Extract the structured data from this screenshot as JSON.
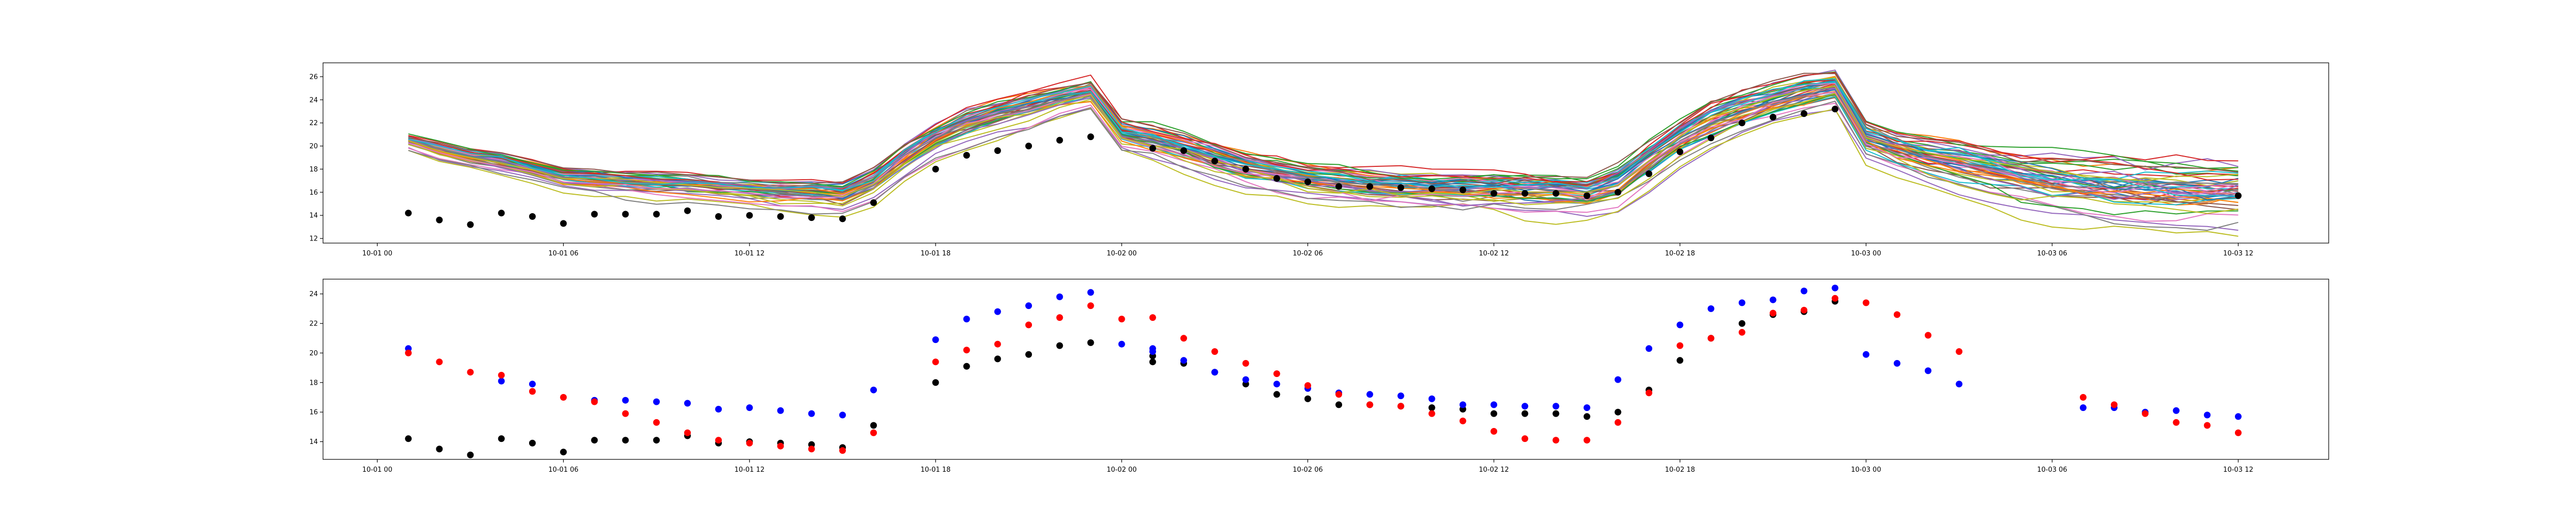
{
  "chart_data": [
    {
      "type": "line",
      "x_type": "datetime",
      "x_ticks": [
        {
          "value": "2021-10-01 00:00",
          "label": "10-01 00"
        },
        {
          "value": "2021-10-01 06:00",
          "label": "10-01 06"
        },
        {
          "value": "2021-10-01 12:00",
          "label": "10-01 12"
        },
        {
          "value": "2021-10-01 18:00",
          "label": "10-01 18"
        },
        {
          "value": "2021-10-02 00:00",
          "label": "10-02 00"
        },
        {
          "value": "2021-10-02 06:00",
          "label": "10-02 06"
        },
        {
          "value": "2021-10-02 12:00",
          "label": "10-02 12"
        },
        {
          "value": "2021-10-02 18:00",
          "label": "10-02 18"
        },
        {
          "value": "2021-10-03 00:00",
          "label": "10-03 00"
        },
        {
          "value": "2021-10-03 06:00",
          "label": "10-03 06"
        },
        {
          "value": "2021-10-03 12:00",
          "label": "10-03 12"
        }
      ],
      "y_ticks": [
        12,
        14,
        16,
        18,
        20,
        22,
        24,
        26
      ],
      "xlim": [
        "2021-09-30 22:15",
        "2021-10-03 14:55"
      ],
      "ylim": [
        11.6,
        27.2
      ],
      "grid": false,
      "ensemble": {
        "member_count": 50,
        "palette": [
          "#1f77b4",
          "#ff7f0e",
          "#2ca02c",
          "#d62728",
          "#9467bd",
          "#8c564b",
          "#e377c2",
          "#7f7f7f",
          "#bcbd22",
          "#17becf"
        ],
        "x": [
          "2021-10-01 01:00",
          "2021-10-01 02:00",
          "2021-10-01 03:00",
          "2021-10-01 04:00",
          "2021-10-01 05:00",
          "2021-10-01 06:00",
          "2021-10-01 07:00",
          "2021-10-01 08:00",
          "2021-10-01 09:00",
          "2021-10-01 10:00",
          "2021-10-01 11:00",
          "2021-10-01 12:00",
          "2021-10-01 13:00",
          "2021-10-01 14:00",
          "2021-10-01 15:00",
          "2021-10-01 16:00",
          "2021-10-01 17:00",
          "2021-10-01 18:00",
          "2021-10-01 19:00",
          "2021-10-01 20:00",
          "2021-10-01 21:00",
          "2021-10-01 22:00",
          "2021-10-01 23:00",
          "2021-10-02 00:00",
          "2021-10-02 01:00",
          "2021-10-02 02:00",
          "2021-10-02 03:00",
          "2021-10-02 04:00",
          "2021-10-02 05:00",
          "2021-10-02 06:00",
          "2021-10-02 07:00",
          "2021-10-02 08:00",
          "2021-10-02 09:00",
          "2021-10-02 10:00",
          "2021-10-02 11:00",
          "2021-10-02 12:00",
          "2021-10-02 13:00",
          "2021-10-02 14:00",
          "2021-10-02 15:00",
          "2021-10-02 16:00",
          "2021-10-02 17:00",
          "2021-10-02 18:00",
          "2021-10-02 19:00",
          "2021-10-02 20:00",
          "2021-10-02 21:00",
          "2021-10-02 22:00",
          "2021-10-02 23:00",
          "2021-10-03 00:00",
          "2021-10-03 01:00",
          "2021-10-03 02:00",
          "2021-10-03 03:00",
          "2021-10-03 04:00",
          "2021-10-03 05:00",
          "2021-10-03 06:00",
          "2021-10-03 07:00",
          "2021-10-03 08:00",
          "2021-10-03 09:00",
          "2021-10-03 10:00",
          "2021-10-03 11:00",
          "2021-10-03 12:00"
        ],
        "central": [
          20.4,
          19.6,
          19.0,
          18.6,
          18.0,
          17.3,
          17.1,
          16.9,
          16.7,
          16.6,
          16.4,
          16.2,
          16.0,
          15.9,
          15.7,
          16.8,
          18.9,
          20.6,
          21.8,
          22.6,
          23.3,
          24.0,
          24.6,
          21.0,
          20.4,
          19.6,
          18.8,
          18.1,
          17.6,
          17.1,
          16.9,
          16.6,
          16.4,
          16.3,
          16.2,
          16.2,
          16.1,
          16.0,
          15.8,
          16.6,
          18.6,
          20.5,
          22.0,
          23.0,
          23.8,
          24.5,
          25.0,
          20.6,
          19.7,
          19.0,
          18.4,
          17.7,
          17.1,
          16.7,
          16.5,
          16.3,
          16.2,
          16.1,
          16.0,
          16.0
        ],
        "spread": [
          0.5,
          0.6,
          0.6,
          0.7,
          0.7,
          0.8,
          0.8,
          0.8,
          0.9,
          0.9,
          0.9,
          0.9,
          1.0,
          1.0,
          1.0,
          1.1,
          1.1,
          1.1,
          1.1,
          1.1,
          1.1,
          1.0,
          1.0,
          1.0,
          1.1,
          1.1,
          1.2,
          1.2,
          1.2,
          1.2,
          1.3,
          1.3,
          1.3,
          1.3,
          1.3,
          1.3,
          1.3,
          1.3,
          1.3,
          1.5,
          1.6,
          1.6,
          1.6,
          1.5,
          1.4,
          1.4,
          1.3,
          1.4,
          1.5,
          1.6,
          1.7,
          1.8,
          1.9,
          2.0,
          2.0,
          2.1,
          2.1,
          2.2,
          2.2,
          2.2
        ]
      },
      "series": [
        {
          "marker": "dot",
          "color": "#000000",
          "x": [
            "2021-10-01 01:00",
            "2021-10-01 02:00",
            "2021-10-01 03:00",
            "2021-10-01 04:00",
            "2021-10-01 05:00",
            "2021-10-01 06:00",
            "2021-10-01 07:00",
            "2021-10-01 08:00",
            "2021-10-01 09:00",
            "2021-10-01 10:00",
            "2021-10-01 11:00",
            "2021-10-01 12:00",
            "2021-10-01 13:00",
            "2021-10-01 14:00",
            "2021-10-01 15:00",
            "2021-10-01 16:00",
            "2021-10-01 18:00",
            "2021-10-01 19:00",
            "2021-10-01 20:00",
            "2021-10-01 21:00",
            "2021-10-01 22:00",
            "2021-10-01 23:00",
            "2021-10-02 01:00",
            "2021-10-02 02:00",
            "2021-10-02 03:00",
            "2021-10-02 04:00",
            "2021-10-02 05:00",
            "2021-10-02 06:00",
            "2021-10-02 07:00",
            "2021-10-02 08:00",
            "2021-10-02 09:00",
            "2021-10-02 10:00",
            "2021-10-02 11:00",
            "2021-10-02 12:00",
            "2021-10-02 13:00",
            "2021-10-02 14:00",
            "2021-10-02 15:00",
            "2021-10-02 16:00",
            "2021-10-02 17:00",
            "2021-10-02 18:00",
            "2021-10-02 19:00",
            "2021-10-02 20:00",
            "2021-10-02 21:00",
            "2021-10-02 22:00",
            "2021-10-02 23:00",
            "2021-10-03 12:00"
          ],
          "y": [
            14.2,
            13.6,
            13.2,
            14.2,
            13.9,
            13.3,
            14.1,
            14.1,
            14.1,
            14.4,
            13.9,
            14.0,
            13.9,
            13.8,
            13.7,
            15.1,
            18.0,
            19.2,
            19.6,
            20.0,
            20.5,
            20.8,
            19.8,
            19.6,
            18.7,
            18.0,
            17.2,
            16.9,
            16.5,
            16.5,
            16.4,
            16.3,
            16.2,
            15.9,
            15.9,
            15.9,
            15.7,
            16.0,
            17.6,
            19.5,
            20.7,
            22.0,
            22.5,
            22.8,
            23.2,
            15.7
          ]
        }
      ]
    },
    {
      "type": "scatter",
      "x_type": "datetime",
      "x_ticks": [
        {
          "value": "2021-10-01 00:00",
          "label": "10-01 00"
        },
        {
          "value": "2021-10-01 06:00",
          "label": "10-01 06"
        },
        {
          "value": "2021-10-01 12:00",
          "label": "10-01 12"
        },
        {
          "value": "2021-10-01 18:00",
          "label": "10-01 18"
        },
        {
          "value": "2021-10-02 00:00",
          "label": "10-02 00"
        },
        {
          "value": "2021-10-02 06:00",
          "label": "10-02 06"
        },
        {
          "value": "2021-10-02 12:00",
          "label": "10-02 12"
        },
        {
          "value": "2021-10-02 18:00",
          "label": "10-02 18"
        },
        {
          "value": "2021-10-03 00:00",
          "label": "10-03 00"
        },
        {
          "value": "2021-10-03 06:00",
          "label": "10-03 06"
        },
        {
          "value": "2021-10-03 12:00",
          "label": "10-03 12"
        }
      ],
      "y_ticks": [
        14,
        16,
        18,
        20,
        22,
        24
      ],
      "xlim": [
        "2021-09-30 22:15",
        "2021-10-03 14:55"
      ],
      "ylim": [
        12.8,
        25.0
      ],
      "grid": false,
      "series": [
        {
          "marker": "dot",
          "color": "#000000",
          "x": [
            "2021-10-01 01:00",
            "2021-10-01 02:00",
            "2021-10-01 03:00",
            "2021-10-01 04:00",
            "2021-10-01 05:00",
            "2021-10-01 06:00",
            "2021-10-01 07:00",
            "2021-10-01 08:00",
            "2021-10-01 09:00",
            "2021-10-01 10:00",
            "2021-10-01 11:00",
            "2021-10-01 12:00",
            "2021-10-01 13:00",
            "2021-10-01 14:00",
            "2021-10-01 15:00",
            "2021-10-01 16:00",
            "2021-10-01 18:00",
            "2021-10-01 19:00",
            "2021-10-01 20:00",
            "2021-10-01 21:00",
            "2021-10-01 22:00",
            "2021-10-01 23:00",
            "2021-10-02 01:00",
            "2021-10-02 01:00",
            "2021-10-02 02:00",
            "2021-10-02 03:00",
            "2021-10-02 04:00",
            "2021-10-02 05:00",
            "2021-10-02 06:00",
            "2021-10-02 07:00",
            "2021-10-02 08:00",
            "2021-10-02 09:00",
            "2021-10-02 10:00",
            "2021-10-02 11:00",
            "2021-10-02 12:00",
            "2021-10-02 13:00",
            "2021-10-02 14:00",
            "2021-10-02 15:00",
            "2021-10-02 16:00",
            "2021-10-02 17:00",
            "2021-10-02 18:00",
            "2021-10-02 19:00",
            "2021-10-02 20:00",
            "2021-10-02 21:00",
            "2021-10-02 22:00",
            "2021-10-02 23:00"
          ],
          "y": [
            14.2,
            13.5,
            13.1,
            14.2,
            13.9,
            13.3,
            14.1,
            14.1,
            14.1,
            14.4,
            13.9,
            14.0,
            13.9,
            13.8,
            13.6,
            15.1,
            18.0,
            19.1,
            19.6,
            19.9,
            20.5,
            20.7,
            19.8,
            19.4,
            19.3,
            18.7,
            17.9,
            17.2,
            16.9,
            16.5,
            16.5,
            16.4,
            16.3,
            16.2,
            15.9,
            15.9,
            15.9,
            15.7,
            16.0,
            17.5,
            19.5,
            21.0,
            22.0,
            22.6,
            22.8,
            23.5
          ]
        },
        {
          "marker": "dot",
          "color": "#0000ff",
          "x": [
            "2021-10-01 01:00",
            "2021-10-01 04:00",
            "2021-10-01 05:00",
            "2021-10-01 07:00",
            "2021-10-01 08:00",
            "2021-10-01 09:00",
            "2021-10-01 10:00",
            "2021-10-01 11:00",
            "2021-10-01 12:00",
            "2021-10-01 13:00",
            "2021-10-01 14:00",
            "2021-10-01 15:00",
            "2021-10-01 16:00",
            "2021-10-01 18:00",
            "2021-10-01 19:00",
            "2021-10-01 20:00",
            "2021-10-01 21:00",
            "2021-10-01 22:00",
            "2021-10-01 23:00",
            "2021-10-02 00:00",
            "2021-10-02 01:00",
            "2021-10-02 01:00",
            "2021-10-02 02:00",
            "2021-10-02 03:00",
            "2021-10-02 04:00",
            "2021-10-02 05:00",
            "2021-10-02 06:00",
            "2021-10-02 07:00",
            "2021-10-02 08:00",
            "2021-10-02 09:00",
            "2021-10-02 10:00",
            "2021-10-02 11:00",
            "2021-10-02 12:00",
            "2021-10-02 13:00",
            "2021-10-02 14:00",
            "2021-10-02 15:00",
            "2021-10-02 16:00",
            "2021-10-02 17:00",
            "2021-10-02 18:00",
            "2021-10-02 19:00",
            "2021-10-02 20:00",
            "2021-10-02 21:00",
            "2021-10-02 22:00",
            "2021-10-02 23:00",
            "2021-10-03 00:00",
            "2021-10-03 01:00",
            "2021-10-03 02:00",
            "2021-10-03 03:00",
            "2021-10-03 07:00",
            "2021-10-03 08:00",
            "2021-10-03 09:00",
            "2021-10-03 10:00",
            "2021-10-03 11:00",
            "2021-10-03 12:00"
          ],
          "y": [
            20.3,
            18.1,
            17.9,
            16.8,
            16.8,
            16.7,
            16.6,
            16.2,
            16.3,
            16.1,
            15.9,
            15.8,
            17.5,
            20.9,
            22.3,
            22.8,
            23.2,
            23.8,
            24.1,
            20.6,
            20.3,
            20.1,
            19.5,
            18.7,
            18.2,
            17.9,
            17.6,
            17.3,
            17.2,
            17.1,
            16.9,
            16.5,
            16.5,
            16.4,
            16.4,
            16.3,
            18.2,
            20.3,
            21.9,
            23.0,
            23.4,
            23.6,
            24.2,
            24.4,
            19.9,
            19.3,
            18.8,
            17.9,
            16.3,
            16.3,
            16.0,
            16.1,
            15.8,
            15.7
          ]
        },
        {
          "marker": "dot",
          "color": "#ff0000",
          "x": [
            "2021-10-01 01:00",
            "2021-10-01 02:00",
            "2021-10-01 03:00",
            "2021-10-01 04:00",
            "2021-10-01 05:00",
            "2021-10-01 06:00",
            "2021-10-01 07:00",
            "2021-10-01 08:00",
            "2021-10-01 09:00",
            "2021-10-01 10:00",
            "2021-10-01 11:00",
            "2021-10-01 12:00",
            "2021-10-01 13:00",
            "2021-10-01 14:00",
            "2021-10-01 15:00",
            "2021-10-01 16:00",
            "2021-10-01 18:00",
            "2021-10-01 19:00",
            "2021-10-01 20:00",
            "2021-10-01 21:00",
            "2021-10-01 22:00",
            "2021-10-01 23:00",
            "2021-10-02 00:00",
            "2021-10-02 01:00",
            "2021-10-02 02:00",
            "2021-10-02 03:00",
            "2021-10-02 04:00",
            "2021-10-02 05:00",
            "2021-10-02 06:00",
            "2021-10-02 07:00",
            "2021-10-02 08:00",
            "2021-10-02 09:00",
            "2021-10-02 10:00",
            "2021-10-02 11:00",
            "2021-10-02 12:00",
            "2021-10-02 13:00",
            "2021-10-02 14:00",
            "2021-10-02 15:00",
            "2021-10-02 16:00",
            "2021-10-02 17:00",
            "2021-10-02 18:00",
            "2021-10-02 19:00",
            "2021-10-02 20:00",
            "2021-10-02 21:00",
            "2021-10-02 22:00",
            "2021-10-02 23:00",
            "2021-10-03 00:00",
            "2021-10-03 01:00",
            "2021-10-03 02:00",
            "2021-10-03 03:00",
            "2021-10-03 07:00",
            "2021-10-03 08:00",
            "2021-10-03 09:00",
            "2021-10-03 10:00",
            "2021-10-03 11:00",
            "2021-10-03 12:00"
          ],
          "y": [
            20.0,
            19.4,
            18.7,
            18.5,
            17.4,
            17.0,
            16.7,
            15.9,
            15.3,
            14.6,
            14.1,
            13.9,
            13.7,
            13.5,
            13.4,
            14.6,
            19.4,
            20.2,
            20.6,
            21.9,
            22.4,
            23.2,
            22.3,
            22.4,
            21.0,
            20.1,
            19.3,
            18.6,
            17.8,
            17.2,
            16.5,
            16.4,
            15.9,
            15.4,
            14.7,
            14.2,
            14.1,
            14.1,
            15.3,
            17.3,
            20.5,
            21.0,
            21.4,
            22.7,
            22.9,
            23.7,
            23.4,
            22.6,
            21.2,
            20.1,
            17.0,
            16.5,
            15.9,
            15.3,
            15.1,
            14.6
          ]
        }
      ]
    }
  ]
}
